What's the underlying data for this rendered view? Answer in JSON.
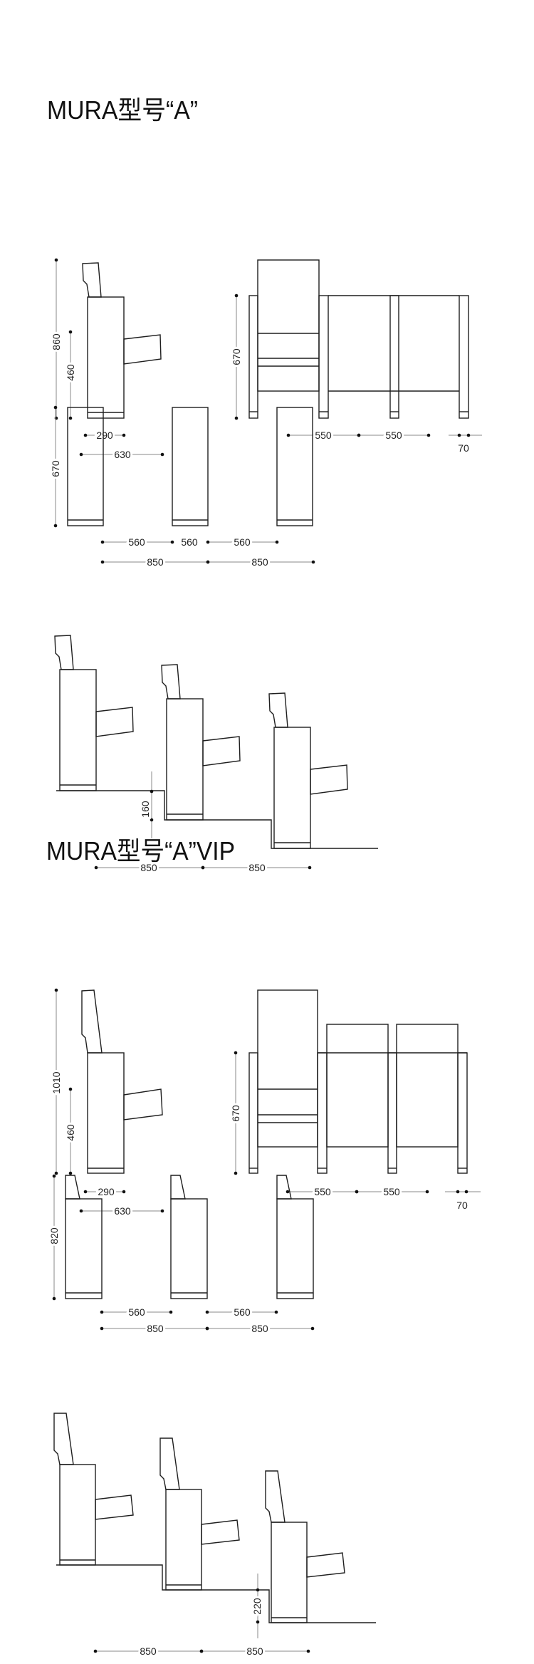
{
  "sections": [
    {
      "title": "MURA型号“A”",
      "side_view": {
        "height": "860",
        "seat_height": "460",
        "depth_folded": "290",
        "depth_open": "630"
      },
      "front_view": {
        "height": "670",
        "seat_widths": [
          "550",
          "550"
        ],
        "armrest": "70"
      },
      "top_view": {
        "height": "670",
        "gaps": [
          "560",
          "560",
          "560"
        ],
        "row_spacing": [
          "850",
          "850"
        ]
      },
      "stepped_view": {
        "step": "160",
        "row_spacing": [
          "850",
          "850"
        ]
      }
    },
    {
      "title": "MURA型号“A”VIP",
      "side_view": {
        "height": "1010",
        "seat_height": "460",
        "depth_folded": "290",
        "depth_open": "630"
      },
      "front_view": {
        "height": "670",
        "seat_widths": [
          "550",
          "550"
        ],
        "armrest": "70"
      },
      "top_view": {
        "height": "820",
        "gaps": [
          "560",
          "560"
        ],
        "row_spacing": [
          "850",
          "850"
        ]
      },
      "stepped_view": {
        "step": "220",
        "row_spacing": [
          "850",
          "850"
        ]
      }
    }
  ],
  "colors": {
    "line": "#1e1e1e",
    "dimension_line": "#8a8a8a",
    "background": "#ffffff"
  }
}
